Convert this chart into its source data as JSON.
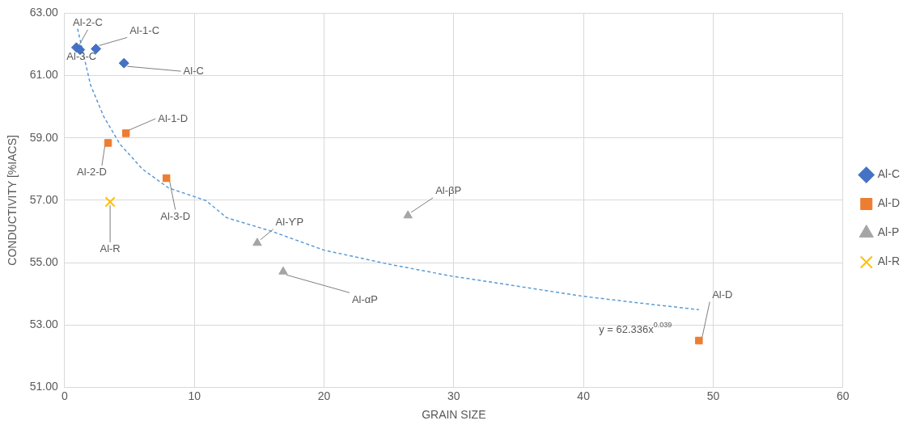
{
  "chart_data": {
    "type": "scatter",
    "xlabel": "GRAIN SIZE",
    "ylabel": "CONDUCTIVITY [%IACS]",
    "xlim": [
      0,
      60
    ],
    "xticks": [
      0,
      10,
      20,
      30,
      40,
      50,
      60
    ],
    "ylim": [
      51,
      63
    ],
    "yticks": [
      {
        "value": 51,
        "label": "51.00"
      },
      {
        "value": 53,
        "label": "53.00"
      },
      {
        "value": 55,
        "label": "55.00"
      },
      {
        "value": 57,
        "label": "57.00"
      },
      {
        "value": 59,
        "label": "59.00"
      },
      {
        "value": 61,
        "label": "61.00"
      },
      {
        "value": 63,
        "label": "63.00"
      }
    ],
    "grid": true,
    "legend": "right",
    "series": [
      {
        "name": "Al-C",
        "color": "#4472c4",
        "marker": "diamond",
        "x": [
          0.91,
          1.18,
          2.42,
          4.58
        ],
        "values": [
          61.9,
          61.83,
          61.86,
          61.4
        ]
      },
      {
        "name": "Al-D",
        "color": "#ed7d31",
        "marker": "square",
        "x": [
          3.35,
          4.73,
          7.85,
          48.9
        ],
        "values": [
          58.84,
          59.15,
          57.71,
          52.5
        ]
      },
      {
        "name": "Al-P",
        "color": "#a5a5a5",
        "marker": "triangle",
        "x": [
          14.85,
          16.85,
          26.47
        ],
        "values": [
          55.63,
          54.71,
          56.51
        ]
      },
      {
        "name": "Al-R",
        "color": "#ffc000",
        "marker": "cross",
        "x": [
          3.51
        ],
        "values": [
          56.95
        ]
      },
      {
        "type": "line",
        "color": "#5b9bd5",
        "marker": "none",
        "line_style": "dashed",
        "x": [
          1.0,
          2.0,
          3.0,
          4.25,
          6.0,
          8.0,
          10.9,
          12.5,
          16.0,
          20.0,
          25.0,
          29.8,
          32.5,
          39.8,
          44.0,
          48.9
        ],
        "values": [
          62.5,
          60.7,
          59.7,
          58.81,
          58.0,
          57.4,
          56.99,
          56.44,
          56.0,
          55.4,
          54.95,
          54.57,
          54.4,
          53.93,
          53.72,
          53.49
        ]
      }
    ],
    "annotations": [
      {
        "text": "Al-2-C",
        "x": 0.91,
        "y": 61.9
      },
      {
        "text": "Al-3-C",
        "x": 1.18,
        "y": 61.83
      },
      {
        "text": "Al-1-C",
        "x": 2.42,
        "y": 61.86
      },
      {
        "text": "Al-C",
        "x": 4.58,
        "y": 61.4
      },
      {
        "text": "Al-2-D",
        "x": 3.35,
        "y": 58.84
      },
      {
        "text": "Al-1-D",
        "x": 4.73,
        "y": 59.15
      },
      {
        "text": "Al-3-D",
        "x": 7.85,
        "y": 57.71
      },
      {
        "text": "Al-D",
        "x": 48.9,
        "y": 52.5
      },
      {
        "text": "Al-ϒP",
        "x": 14.85,
        "y": 55.63
      },
      {
        "text": "Al-αP",
        "x": 16.85,
        "y": 54.71
      },
      {
        "text": "Al-βP",
        "x": 26.47,
        "y": 56.51
      },
      {
        "text": "Al-R",
        "x": 3.51,
        "y": 56.95
      },
      "y = 62.336x$^{0.039}$"
    ]
  }
}
